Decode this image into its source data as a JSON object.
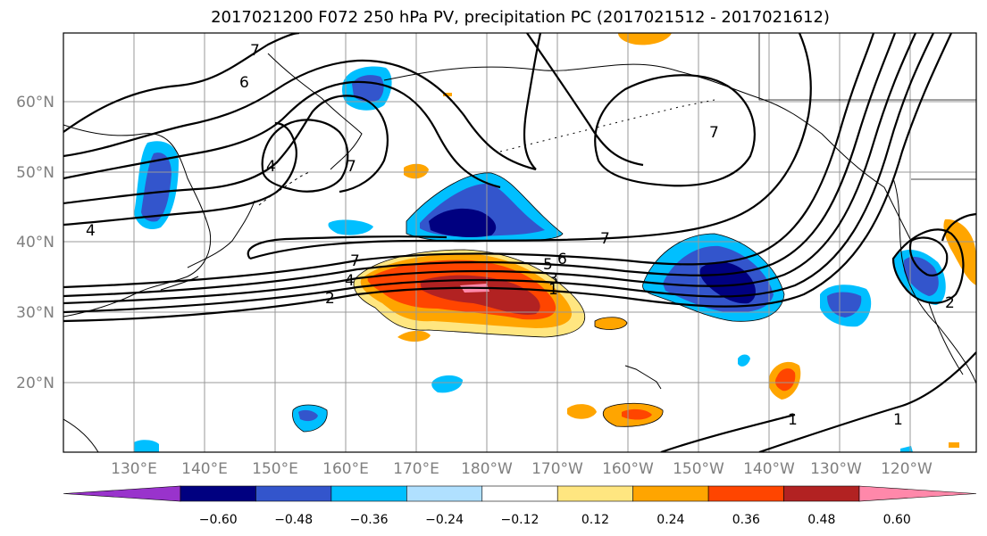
{
  "title": "2017021200 F072 250 hPa PV, precipitation PC (2017021512 - 2017021612)",
  "latitude_labels": [
    "60°N",
    "50°N",
    "40°N",
    "30°N",
    "20°N"
  ],
  "longitude_labels": [
    "130°E",
    "140°E",
    "150°E",
    "160°E",
    "170°E",
    "180°W",
    "170°W",
    "160°W",
    "150°W",
    "140°W",
    "130°W",
    "120°W"
  ],
  "colorbar": {
    "tick_labels": [
      "−0.60",
      "−0.48",
      "−0.36",
      "−0.24",
      "−0.12",
      "0.12",
      "0.24",
      "0.36",
      "0.48",
      "0.60"
    ],
    "colors": [
      "#9933cc",
      "#000080",
      "#3355cc",
      "#00bfff",
      "#b0e0ff",
      "#ffffff",
      "#ffe680",
      "#ffa500",
      "#ff4500",
      "#b22222",
      "#ff88aa"
    ]
  },
  "contour_labels": [
    "7",
    "6",
    "4",
    "4",
    "7",
    "7",
    "7",
    "5",
    "6",
    "3",
    "2",
    "1",
    "7",
    "4",
    "2",
    "1",
    "1"
  ],
  "colors": {
    "positive": "#ff4500",
    "negative": "#000080",
    "contour": "#000000"
  }
}
